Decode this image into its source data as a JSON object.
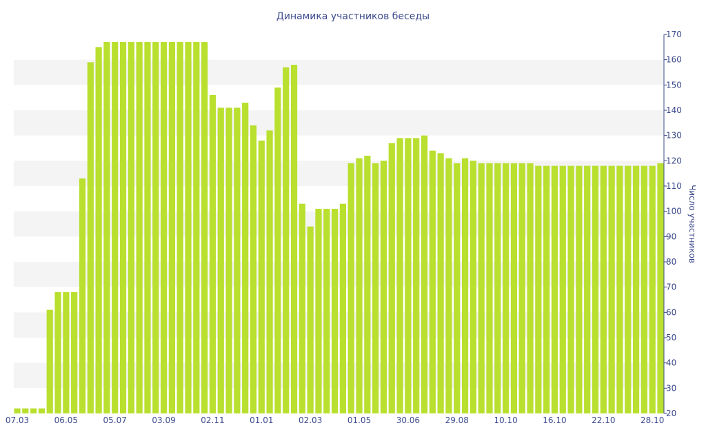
{
  "chart_data": {
    "type": "bar",
    "title": "Динамика участников беседы",
    "ylabel": "Число участников",
    "xlabel": "",
    "ylim": [
      20,
      170
    ],
    "yticks": [
      20,
      30,
      40,
      50,
      60,
      70,
      80,
      90,
      100,
      110,
      120,
      130,
      140,
      150,
      160,
      170
    ],
    "y_axis_side": "right",
    "x_tick_labels": [
      {
        "index": 0,
        "label": "07.03"
      },
      {
        "index": 6,
        "label": "06.05"
      },
      {
        "index": 12,
        "label": "05.07"
      },
      {
        "index": 18,
        "label": "03.09"
      },
      {
        "index": 24,
        "label": "02.11"
      },
      {
        "index": 30,
        "label": "01.01"
      },
      {
        "index": 36,
        "label": "02.03"
      },
      {
        "index": 42,
        "label": "01.05"
      },
      {
        "index": 48,
        "label": "30.06"
      },
      {
        "index": 54,
        "label": "29.08"
      },
      {
        "index": 60,
        "label": "10.10"
      },
      {
        "index": 66,
        "label": "16.10"
      },
      {
        "index": 72,
        "label": "22.10"
      },
      {
        "index": 78,
        "label": "28.10"
      }
    ],
    "values": [
      22,
      22,
      22,
      22,
      61,
      68,
      68,
      68,
      113,
      159,
      165,
      167,
      167,
      167,
      167,
      167,
      167,
      167,
      167,
      167,
      167,
      167,
      167,
      167,
      146,
      141,
      141,
      141,
      143,
      134,
      128,
      132,
      149,
      157,
      158,
      103,
      94,
      101,
      101,
      101,
      103,
      119,
      121,
      122,
      119,
      120,
      127,
      129,
      129,
      129,
      130,
      124,
      123,
      121,
      119,
      121,
      120,
      119,
      119,
      119,
      119,
      119,
      119,
      119,
      118,
      118,
      118,
      118,
      118,
      118,
      118,
      118,
      118,
      118,
      118,
      118,
      118,
      118,
      118,
      119
    ],
    "bar_color": "#b9df2f",
    "band_color": "#f4f4f4",
    "text_color": "#3c4a8c",
    "grid": "alternating bands",
    "legend": "none"
  }
}
